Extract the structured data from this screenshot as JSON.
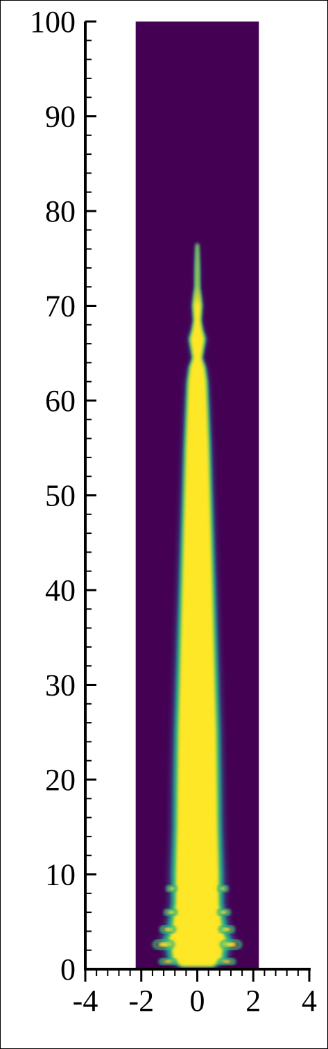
{
  "chart_data": {
    "type": "heatmap",
    "title": "",
    "xlabel": "",
    "ylabel": "",
    "xlim": [
      -4,
      4
    ],
    "ylim": [
      0,
      100
    ],
    "domain_x": [
      -2.2,
      2.2
    ],
    "x_ticks": [
      -4,
      -2,
      0,
      2,
      4
    ],
    "y_ticks": [
      0,
      10,
      20,
      30,
      40,
      50,
      60,
      70,
      80,
      90,
      100
    ],
    "x_tick_labels": [
      "-4",
      "-2",
      "0",
      "2",
      "4"
    ],
    "y_tick_labels": [
      "0",
      "10",
      "20",
      "30",
      "40",
      "50",
      "60",
      "70",
      "80",
      "90",
      "100"
    ],
    "background_color": "#440154",
    "core_color": "#fde725",
    "edge_colors": [
      "#35b779",
      "#21918c",
      "#3b528b"
    ],
    "jet_profile": [
      {
        "y": 0.3,
        "half_width": 0.6
      },
      {
        "y": 1.0,
        "half_width": 0.95
      },
      {
        "y": 2.0,
        "half_width": 1.0
      },
      {
        "y": 3.0,
        "half_width": 1.15
      },
      {
        "y": 4.0,
        "half_width": 1.0
      },
      {
        "y": 5.0,
        "half_width": 0.95
      },
      {
        "y": 7.0,
        "half_width": 0.85
      },
      {
        "y": 10.0,
        "half_width": 0.85
      },
      {
        "y": 15.0,
        "half_width": 0.8
      },
      {
        "y": 20.0,
        "half_width": 0.78
      },
      {
        "y": 25.0,
        "half_width": 0.75
      },
      {
        "y": 30.0,
        "half_width": 0.7
      },
      {
        "y": 35.0,
        "half_width": 0.65
      },
      {
        "y": 40.0,
        "half_width": 0.6
      },
      {
        "y": 45.0,
        "half_width": 0.55
      },
      {
        "y": 50.0,
        "half_width": 0.5
      },
      {
        "y": 55.0,
        "half_width": 0.45
      },
      {
        "y": 60.0,
        "half_width": 0.38
      },
      {
        "y": 62.0,
        "half_width": 0.35
      },
      {
        "y": 63.5,
        "half_width": 0.28
      },
      {
        "y": 64.5,
        "half_width": 0.16
      },
      {
        "y": 65.5,
        "half_width": 0.22
      },
      {
        "y": 66.5,
        "half_width": 0.28
      },
      {
        "y": 67.5,
        "half_width": 0.18
      },
      {
        "y": 68.5,
        "half_width": 0.12
      },
      {
        "y": 70.0,
        "half_width": 0.16
      },
      {
        "y": 71.0,
        "half_width": 0.12
      },
      {
        "y": 72.0,
        "half_width": 0.07
      },
      {
        "y": 74.0,
        "half_width": 0.06
      },
      {
        "y": 76.5,
        "half_width": 0.03
      }
    ]
  }
}
